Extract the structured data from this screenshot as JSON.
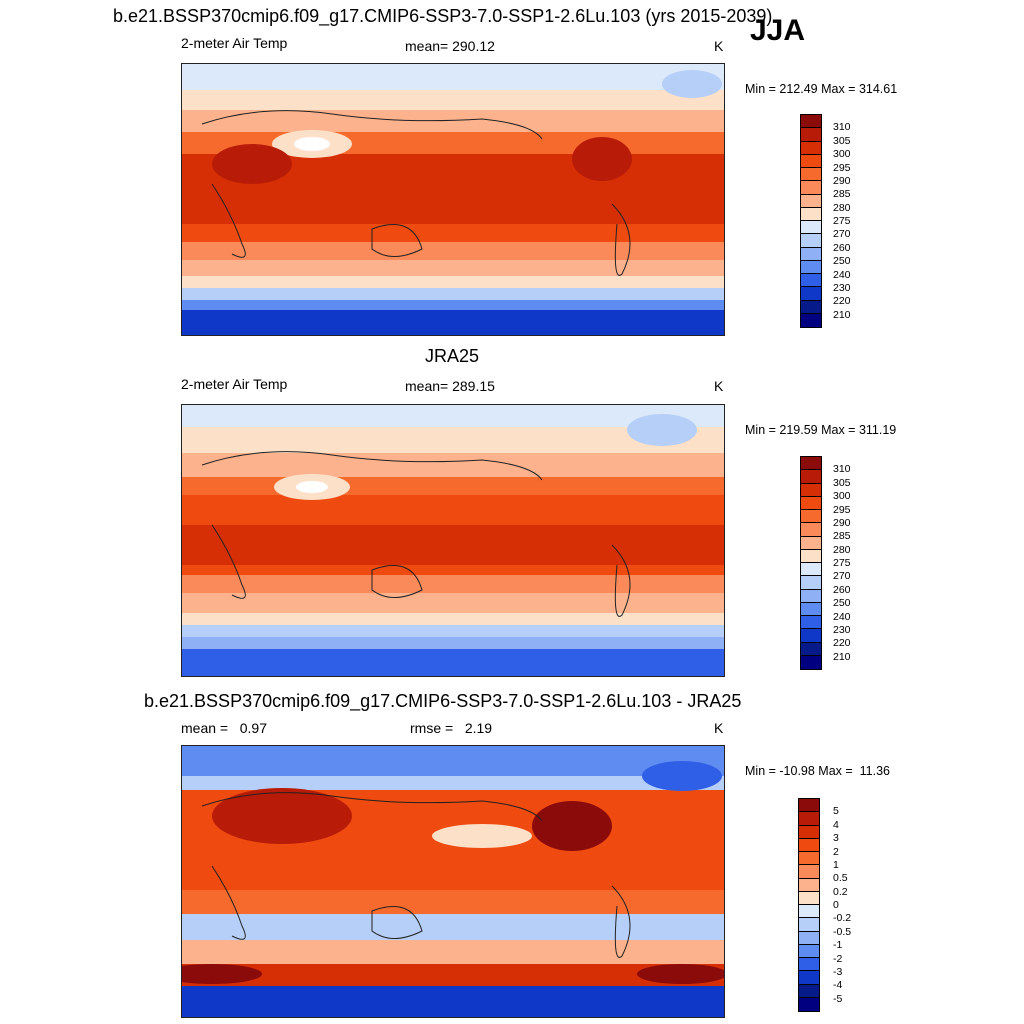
{
  "season": "JJA",
  "panels": [
    {
      "title": "b.e21.BSSP370cmip6.f09_g17.CMIP6-SSP3-7.0-SSP1-2.6Lu.103 (yrs 2015-2039)",
      "left_label": "2-meter Air Temp",
      "center_label": "mean= 290.12",
      "units": "K",
      "minmax": "Min = 212.49 Max = 314.61",
      "colorbar_labels": [
        "310",
        "305",
        "300",
        "295",
        "290",
        "285",
        "280",
        "275",
        "270",
        "260",
        "250",
        "240",
        "230",
        "220",
        "210"
      ],
      "palette": "temp"
    },
    {
      "title": "JRA25",
      "left_label": "2-meter Air Temp",
      "center_label": "mean= 289.15",
      "units": "K",
      "minmax": "Min = 219.59 Max = 311.19",
      "colorbar_labels": [
        "310",
        "305",
        "300",
        "295",
        "290",
        "285",
        "280",
        "275",
        "270",
        "260",
        "250",
        "240",
        "230",
        "220",
        "210"
      ],
      "palette": "temp"
    },
    {
      "title": "b.e21.BSSP370cmip6.f09_g17.CMIP6-SSP3-7.0-SSP1-2.6Lu.103 - JRA25",
      "left_label": "mean =   0.97",
      "center_label": "rmse =   2.19",
      "units": "K",
      "minmax": "Min = -10.98 Max =  11.36",
      "colorbar_labels": [
        "5",
        "4",
        "3",
        "2",
        "1",
        "0.5",
        "0.2",
        "0",
        "-0.2",
        "-0.5",
        "-1",
        "-2",
        "-3",
        "-4",
        "-5"
      ],
      "palette": "diff"
    }
  ],
  "colors": {
    "temp_palette": [
      "#8b0a0a",
      "#b81b07",
      "#d62f06",
      "#ef4a0f",
      "#f66a2e",
      "#fa8a5a",
      "#fcb28d",
      "#fde0c8",
      "#dbe9fb",
      "#b5cff8",
      "#8fb0f5",
      "#5f8cf0",
      "#2f5fe6",
      "#0f37c8",
      "#071a8a",
      "#000080"
    ],
    "diff_palette": [
      "#8b0a0a",
      "#b81b07",
      "#d62f06",
      "#ef4a0f",
      "#f66a2e",
      "#fa8a5a",
      "#fcb28d",
      "#fde0c8",
      "#dbe9fb",
      "#b5cff8",
      "#8fb0f5",
      "#5f8cf0",
      "#2f5fe6",
      "#0f37c8",
      "#071a8a",
      "#000080"
    ]
  }
}
